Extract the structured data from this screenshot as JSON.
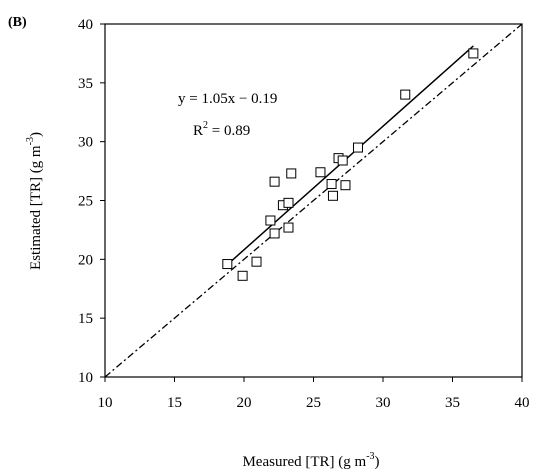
{
  "chart_data": {
    "type": "scatter",
    "panel_label": "(B)",
    "xlabel_main": "Measured [TR] (g m",
    "xlabel_sup": "-3",
    "xlabel_end": ")",
    "ylabel_main": "Estimated [TR]  (g m",
    "ylabel_sup": "-3",
    "ylabel_end": ")",
    "xlim": [
      10,
      40
    ],
    "ylim": [
      10,
      40
    ],
    "x_ticks": [
      "10",
      "15",
      "20",
      "25",
      "30",
      "35",
      "40"
    ],
    "y_ticks": [
      "10",
      "15",
      "20",
      "25",
      "30",
      "35",
      "40"
    ],
    "grid": false,
    "legend": "none",
    "points": [
      {
        "x": 18.8,
        "y": 19.6
      },
      {
        "x": 19.9,
        "y": 18.6
      },
      {
        "x": 20.9,
        "y": 19.8
      },
      {
        "x": 21.9,
        "y": 23.3
      },
      {
        "x": 22.2,
        "y": 26.6
      },
      {
        "x": 22.2,
        "y": 22.2
      },
      {
        "x": 22.8,
        "y": 24.6
      },
      {
        "x": 23.2,
        "y": 24.8
      },
      {
        "x": 23.2,
        "y": 22.7
      },
      {
        "x": 23.4,
        "y": 27.3
      },
      {
        "x": 25.5,
        "y": 27.4
      },
      {
        "x": 26.3,
        "y": 26.4
      },
      {
        "x": 26.4,
        "y": 25.4
      },
      {
        "x": 26.8,
        "y": 28.6
      },
      {
        "x": 27.1,
        "y": 28.4
      },
      {
        "x": 27.3,
        "y": 26.3
      },
      {
        "x": 28.2,
        "y": 29.5
      },
      {
        "x": 31.6,
        "y": 34.0
      },
      {
        "x": 36.5,
        "y": 37.5
      }
    ],
    "regression": {
      "slope": 1.05,
      "intercept": -0.19,
      "x_range": [
        18.8,
        36.5
      ]
    },
    "one_to_one_line": {
      "x_range": [
        10,
        40
      ]
    },
    "annotation_equation": "y = 1.05x − 0.19",
    "annotation_r2_prefix": "R",
    "annotation_r2_sup": "2",
    "annotation_r2_suffix": " = 0.89"
  }
}
